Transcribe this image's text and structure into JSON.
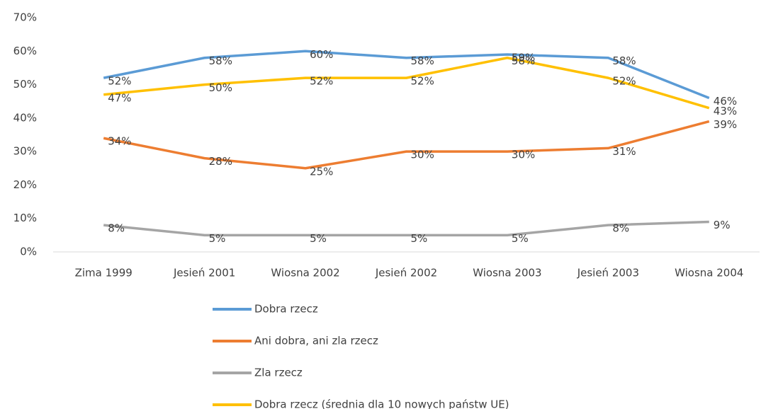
{
  "chart_data": {
    "type": "line",
    "categories": [
      "Zima 1999",
      "Jesień 2001",
      "Wiosna 2002",
      "Jesień 2002",
      "Wiosna 2003",
      "Jesień 2003",
      "Wiosna 2004"
    ],
    "ylim": [
      0,
      70
    ],
    "yticks": [
      {
        "value": 0,
        "label": "0%"
      },
      {
        "value": 10,
        "label": "10%"
      },
      {
        "value": 20,
        "label": "20%"
      },
      {
        "value": 30,
        "label": "30%"
      },
      {
        "value": 40,
        "label": "40%"
      },
      {
        "value": 50,
        "label": "50%"
      },
      {
        "value": 60,
        "label": "60%"
      },
      {
        "value": 70,
        "label": "70%"
      }
    ],
    "grid": false,
    "legend": "bottom",
    "series": [
      {
        "name": "Dobra rzecz",
        "color": "#5b9bd5",
        "values": [
          52,
          58,
          60,
          58,
          59,
          58,
          46
        ],
        "value_labels": [
          "52%",
          "58%",
          "60%",
          "58%",
          "59%",
          "58%",
          "46%"
        ]
      },
      {
        "name": "Ani dobra, ani zla rzecz",
        "color": "#ed7d31",
        "values": [
          34,
          28,
          25,
          30,
          30,
          31,
          39
        ],
        "value_labels": [
          "34%",
          "28%",
          "25%",
          "30%",
          "30%",
          "31%",
          "39%"
        ]
      },
      {
        "name": "Zla rzecz",
        "color": "#a5a5a5",
        "values": [
          8,
          5,
          5,
          5,
          5,
          8,
          9
        ],
        "value_labels": [
          "8%",
          "5%",
          "5%",
          "5%",
          "5%",
          "8%",
          "9%"
        ]
      },
      {
        "name": "Dobra rzecz (średnia dla 10 nowych państw UE)",
        "color": "#ffc000",
        "values": [
          47,
          50,
          52,
          52,
          58,
          52,
          43
        ],
        "value_labels": [
          "47%",
          "50%",
          "52%",
          "52%",
          "58%",
          "52%",
          "43%"
        ]
      }
    ]
  }
}
